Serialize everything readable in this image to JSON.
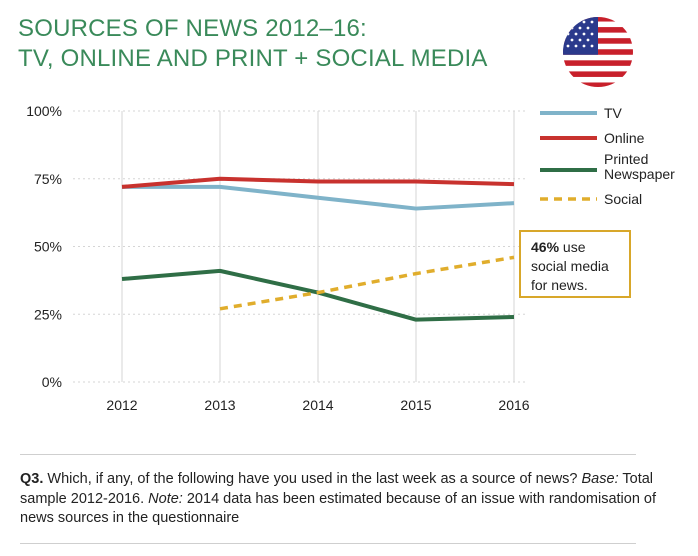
{
  "title": {
    "line1": "SOURCES OF NEWS 2012–16:",
    "line2": "TV, ONLINE AND PRINT + SOCIAL MEDIA"
  },
  "flag_icon": "us-flag-icon",
  "colors": {
    "title": "#3a8a5a",
    "tv": "#7fb3c9",
    "online": "#c8322e",
    "printed": "#2f6e46",
    "social": "#e0ad2c",
    "grid": "#d5d5d5"
  },
  "chart_data": {
    "type": "line",
    "title": "SOURCES OF NEWS 2012–16: TV, ONLINE AND PRINT + SOCIAL MEDIA",
    "x": [
      "2012",
      "2013",
      "2014",
      "2015",
      "2016"
    ],
    "y_ticks": [
      "0%",
      "25%",
      "50%",
      "75%",
      "100%"
    ],
    "ylim": [
      0,
      100
    ],
    "xlabel": "",
    "ylabel": "",
    "grid": true,
    "legend_position": "top-right",
    "series": [
      {
        "name": "TV",
        "values": [
          72,
          72,
          68,
          64,
          66
        ],
        "style": "solid"
      },
      {
        "name": "Online",
        "values": [
          72,
          75,
          74,
          74,
          73
        ],
        "style": "solid"
      },
      {
        "name": "Printed\nNewspaper",
        "values": [
          38,
          41,
          33,
          23,
          24
        ],
        "style": "solid"
      },
      {
        "name": "Social",
        "values": [
          null,
          27,
          33,
          40,
          46
        ],
        "style": "dashed"
      }
    ],
    "annotation": {
      "bold": "46%",
      "text_line1": " use",
      "text_line2": "social media",
      "text_line3": "for news."
    }
  },
  "note": {
    "q_label": "Q3.",
    "q_text": " Which, if any, of the following have you used in the last week as a source of news? ",
    "base_label": "Base:",
    "base_text": " Total sample 2012-2016. ",
    "note_label": "Note:",
    "note_text": " 2014 data has been estimated because of an issue with randomisation of news sources in the questionnaire"
  }
}
